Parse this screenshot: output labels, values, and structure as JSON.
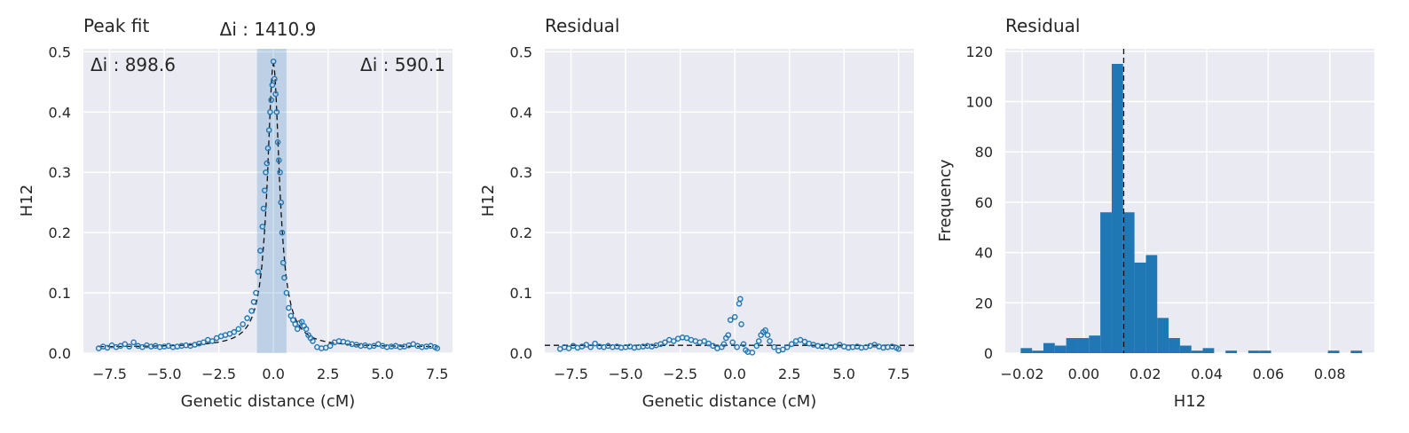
{
  "chart_data": [
    {
      "type": "scatter",
      "title": "Peak fit",
      "xlabel": "Genetic distance (cM)",
      "ylabel": "H12",
      "xlim": [
        -8.7,
        8.2
      ],
      "ylim": [
        0,
        0.505
      ],
      "xticks": [
        -7.5,
        -5.0,
        -2.5,
        0.0,
        2.5,
        5.0,
        7.5
      ],
      "xtick_labels": [
        "−7.5",
        "−5.0",
        "−2.5",
        "0.0",
        "2.5",
        "5.0",
        "7.5"
      ],
      "yticks": [
        0.0,
        0.1,
        0.2,
        0.3,
        0.4,
        0.5
      ],
      "ytick_labels": [
        "0.0",
        "0.1",
        "0.2",
        "0.3",
        "0.4",
        "0.5"
      ],
      "annotations": [
        {
          "text": "Δi : 1410.9"
        },
        {
          "text": "Δi : 898.6"
        },
        {
          "text": "Δi : 590.1"
        }
      ],
      "shaded_x_range": [
        -0.75,
        0.6
      ],
      "fit_curve": {
        "style": "dashed",
        "color": "#111111",
        "peak_x": 0.0,
        "peak_y": 0.48,
        "baseline": 0.01
      },
      "series": [
        {
          "marker": "open-circle",
          "points": [
            [
              -8.0,
              0.008
            ],
            [
              -7.8,
              0.011
            ],
            [
              -7.6,
              0.009
            ],
            [
              -7.4,
              0.013
            ],
            [
              -7.2,
              0.01
            ],
            [
              -7.0,
              0.012
            ],
            [
              -6.8,
              0.015
            ],
            [
              -6.6,
              0.011
            ],
            [
              -6.4,
              0.018
            ],
            [
              -6.2,
              0.012
            ],
            [
              -6.0,
              0.01
            ],
            [
              -5.8,
              0.013
            ],
            [
              -5.6,
              0.011
            ],
            [
              -5.4,
              0.012
            ],
            [
              -5.2,
              0.01
            ],
            [
              -5.0,
              0.011
            ],
            [
              -4.8,
              0.012
            ],
            [
              -4.6,
              0.01
            ],
            [
              -4.4,
              0.011
            ],
            [
              -4.2,
              0.012
            ],
            [
              -4.0,
              0.013
            ],
            [
              -3.8,
              0.012
            ],
            [
              -3.6,
              0.014
            ],
            [
              -3.4,
              0.016
            ],
            [
              -3.2,
              0.018
            ],
            [
              -3.0,
              0.022
            ],
            [
              -2.8,
              0.02
            ],
            [
              -2.6,
              0.025
            ],
            [
              -2.4,
              0.028
            ],
            [
              -2.2,
              0.03
            ],
            [
              -2.0,
              0.032
            ],
            [
              -1.8,
              0.035
            ],
            [
              -1.6,
              0.04
            ],
            [
              -1.4,
              0.048
            ],
            [
              -1.2,
              0.058
            ],
            [
              -1.0,
              0.07
            ],
            [
              -0.9,
              0.085
            ],
            [
              -0.8,
              0.1
            ],
            [
              -0.7,
              0.135
            ],
            [
              -0.6,
              0.17
            ],
            [
              -0.5,
              0.21
            ],
            [
              -0.45,
              0.24
            ],
            [
              -0.4,
              0.27
            ],
            [
              -0.35,
              0.3
            ],
            [
              -0.3,
              0.315
            ],
            [
              -0.25,
              0.34
            ],
            [
              -0.2,
              0.37
            ],
            [
              -0.15,
              0.4
            ],
            [
              -0.1,
              0.42
            ],
            [
              -0.05,
              0.445
            ],
            [
              0.0,
              0.484
            ],
            [
              0.05,
              0.455
            ],
            [
              0.1,
              0.43
            ],
            [
              0.15,
              0.4
            ],
            [
              0.2,
              0.35
            ],
            [
              0.25,
              0.32
            ],
            [
              0.3,
              0.3
            ],
            [
              0.35,
              0.25
            ],
            [
              0.4,
              0.2
            ],
            [
              0.45,
              0.15
            ],
            [
              0.5,
              0.125
            ],
            [
              0.6,
              0.1
            ],
            [
              0.7,
              0.075
            ],
            [
              0.8,
              0.062
            ],
            [
              0.9,
              0.055
            ],
            [
              1.0,
              0.048
            ],
            [
              1.1,
              0.04
            ],
            [
              1.2,
              0.05
            ],
            [
              1.3,
              0.052
            ],
            [
              1.4,
              0.045
            ],
            [
              1.5,
              0.04
            ],
            [
              1.6,
              0.03
            ],
            [
              1.7,
              0.025
            ],
            [
              1.8,
              0.02
            ],
            [
              2.0,
              0.01
            ],
            [
              2.2,
              0.008
            ],
            [
              2.4,
              0.009
            ],
            [
              2.6,
              0.012
            ],
            [
              2.8,
              0.018
            ],
            [
              3.0,
              0.02
            ],
            [
              3.2,
              0.019
            ],
            [
              3.4,
              0.017
            ],
            [
              3.6,
              0.015
            ],
            [
              3.8,
              0.014
            ],
            [
              4.0,
              0.012
            ],
            [
              4.2,
              0.013
            ],
            [
              4.4,
              0.011
            ],
            [
              4.6,
              0.012
            ],
            [
              4.8,
              0.015
            ],
            [
              5.0,
              0.012
            ],
            [
              5.2,
              0.01
            ],
            [
              5.4,
              0.011
            ],
            [
              5.6,
              0.012
            ],
            [
              5.8,
              0.01
            ],
            [
              6.0,
              0.011
            ],
            [
              6.2,
              0.013
            ],
            [
              6.4,
              0.015
            ],
            [
              6.6,
              0.012
            ],
            [
              6.8,
              0.01
            ],
            [
              7.0,
              0.011
            ],
            [
              7.2,
              0.012
            ],
            [
              7.4,
              0.01
            ],
            [
              7.5,
              0.008
            ]
          ]
        }
      ]
    },
    {
      "type": "scatter",
      "title": "Residual",
      "xlabel": "Genetic distance (cM)",
      "ylabel": "H12",
      "xlim": [
        -8.7,
        8.2
      ],
      "ylim": [
        0,
        0.505
      ],
      "xticks": [
        -7.5,
        -5.0,
        -2.5,
        0.0,
        2.5,
        5.0,
        7.5
      ],
      "xtick_labels": [
        "−7.5",
        "−5.0",
        "−2.5",
        "0.0",
        "2.5",
        "5.0",
        "7.5"
      ],
      "yticks": [
        0.0,
        0.1,
        0.2,
        0.3,
        0.4,
        0.5
      ],
      "ytick_labels": [
        "0.0",
        "0.1",
        "0.2",
        "0.3",
        "0.4",
        "0.5"
      ],
      "reference_line": {
        "y": 0.013,
        "style": "dashed"
      },
      "series": [
        {
          "marker": "open-circle",
          "points": [
            [
              -8.0,
              0.007
            ],
            [
              -7.8,
              0.01
            ],
            [
              -7.6,
              0.008
            ],
            [
              -7.4,
              0.012
            ],
            [
              -7.2,
              0.009
            ],
            [
              -7.0,
              0.011
            ],
            [
              -6.8,
              0.014
            ],
            [
              -6.6,
              0.01
            ],
            [
              -6.4,
              0.016
            ],
            [
              -6.2,
              0.011
            ],
            [
              -6.0,
              0.01
            ],
            [
              -5.8,
              0.012
            ],
            [
              -5.6,
              0.01
            ],
            [
              -5.4,
              0.011
            ],
            [
              -5.2,
              0.009
            ],
            [
              -5.0,
              0.01
            ],
            [
              -4.8,
              0.011
            ],
            [
              -4.6,
              0.009
            ],
            [
              -4.4,
              0.01
            ],
            [
              -4.2,
              0.011
            ],
            [
              -4.0,
              0.012
            ],
            [
              -3.8,
              0.011
            ],
            [
              -3.6,
              0.013
            ],
            [
              -3.4,
              0.015
            ],
            [
              -3.2,
              0.018
            ],
            [
              -3.0,
              0.022
            ],
            [
              -2.8,
              0.02
            ],
            [
              -2.6,
              0.024
            ],
            [
              -2.4,
              0.026
            ],
            [
              -2.2,
              0.025
            ],
            [
              -2.0,
              0.022
            ],
            [
              -1.8,
              0.02
            ],
            [
              -1.6,
              0.018
            ],
            [
              -1.4,
              0.02
            ],
            [
              -1.2,
              0.016
            ],
            [
              -1.0,
              0.012
            ],
            [
              -0.8,
              0.008
            ],
            [
              -0.6,
              0.01
            ],
            [
              -0.5,
              0.015
            ],
            [
              -0.4,
              0.025
            ],
            [
              -0.3,
              0.03
            ],
            [
              -0.2,
              0.055
            ],
            [
              -0.1,
              0.018
            ],
            [
              0.0,
              0.06
            ],
            [
              0.1,
              0.01
            ],
            [
              0.2,
              0.082
            ],
            [
              0.25,
              0.09
            ],
            [
              0.3,
              0.048
            ],
            [
              0.4,
              0.015
            ],
            [
              0.5,
              0.005
            ],
            [
              0.6,
              0.002
            ],
            [
              0.8,
              0.001
            ],
            [
              1.0,
              0.012
            ],
            [
              1.1,
              0.02
            ],
            [
              1.2,
              0.03
            ],
            [
              1.3,
              0.035
            ],
            [
              1.4,
              0.038
            ],
            [
              1.5,
              0.03
            ],
            [
              1.6,
              0.02
            ],
            [
              1.8,
              0.01
            ],
            [
              2.0,
              0.004
            ],
            [
              2.2,
              0.006
            ],
            [
              2.4,
              0.01
            ],
            [
              2.6,
              0.015
            ],
            [
              2.8,
              0.02
            ],
            [
              3.0,
              0.022
            ],
            [
              3.2,
              0.019
            ],
            [
              3.4,
              0.016
            ],
            [
              3.6,
              0.014
            ],
            [
              3.8,
              0.012
            ],
            [
              4.0,
              0.011
            ],
            [
              4.2,
              0.012
            ],
            [
              4.4,
              0.01
            ],
            [
              4.6,
              0.011
            ],
            [
              4.8,
              0.014
            ],
            [
              5.0,
              0.011
            ],
            [
              5.2,
              0.009
            ],
            [
              5.4,
              0.01
            ],
            [
              5.6,
              0.011
            ],
            [
              5.8,
              0.009
            ],
            [
              6.0,
              0.01
            ],
            [
              6.2,
              0.012
            ],
            [
              6.4,
              0.014
            ],
            [
              6.6,
              0.011
            ],
            [
              6.8,
              0.009
            ],
            [
              7.0,
              0.01
            ],
            [
              7.2,
              0.011
            ],
            [
              7.4,
              0.009
            ],
            [
              7.5,
              0.007
            ]
          ]
        }
      ]
    },
    {
      "type": "bar",
      "subtype": "histogram",
      "title": "Residual",
      "xlabel": "H12",
      "ylabel": "Frequency",
      "xlim": [
        -0.0255,
        0.0945
      ],
      "ylim": [
        0,
        121
      ],
      "xticks": [
        -0.02,
        0.0,
        0.02,
        0.04,
        0.06,
        0.08
      ],
      "xtick_labels": [
        "−0.02",
        "0.00",
        "0.02",
        "0.04",
        "0.06",
        "0.08"
      ],
      "yticks": [
        0,
        20,
        40,
        60,
        80,
        100,
        120
      ],
      "ytick_labels": [
        "0",
        "20",
        "40",
        "60",
        "80",
        "100",
        "120"
      ],
      "bin_start": -0.0205,
      "bin_width": 0.0037,
      "counts": [
        2,
        1,
        4,
        3,
        6,
        6,
        7,
        56,
        115,
        56,
        36,
        39,
        14,
        6,
        3,
        1,
        2,
        0,
        1,
        0,
        1,
        1,
        0,
        0,
        0,
        0,
        0,
        1,
        0,
        1
      ],
      "reference_line": {
        "x": 0.013,
        "style": "dashed"
      }
    }
  ]
}
